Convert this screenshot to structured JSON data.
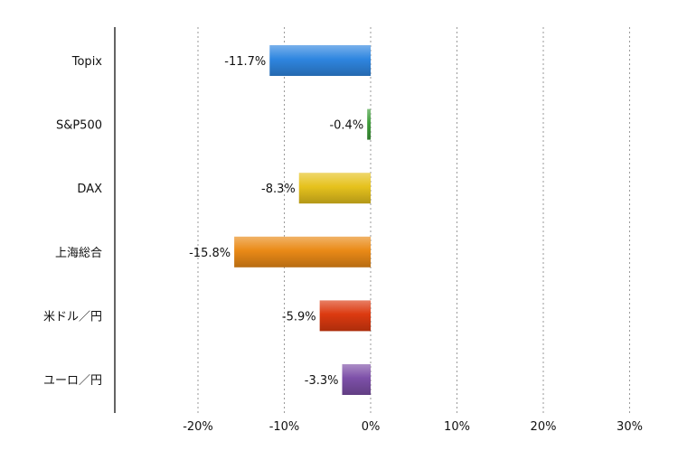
{
  "chart_data": {
    "type": "bar",
    "orientation": "horizontal",
    "categories": [
      "Topix",
      "S&P500",
      "DAX",
      "上海総合",
      "米ドル／円",
      "ユーロ／円"
    ],
    "values": [
      -11.7,
      -0.4,
      -8.3,
      -15.8,
      -5.9,
      -3.3
    ],
    "data_labels": [
      "-11.7%",
      "-0.4%",
      "-8.3%",
      "-15.8%",
      "-5.9%",
      "-3.3%"
    ],
    "bar_colors": [
      "#2f86e0",
      "#3f9d3a",
      "#e6c21d",
      "#ea8a17",
      "#dc3a10",
      "#7d50a8"
    ],
    "xlim": [
      -30,
      30
    ],
    "xticks": [
      -20,
      -10,
      0,
      10,
      20,
      30
    ],
    "xtick_labels": [
      "-20%",
      "-10%",
      "0%",
      "10%",
      "20%",
      "30%"
    ],
    "grid": "vertical-dotted",
    "legend": "none",
    "title": "",
    "xlabel": "",
    "ylabel": ""
  }
}
